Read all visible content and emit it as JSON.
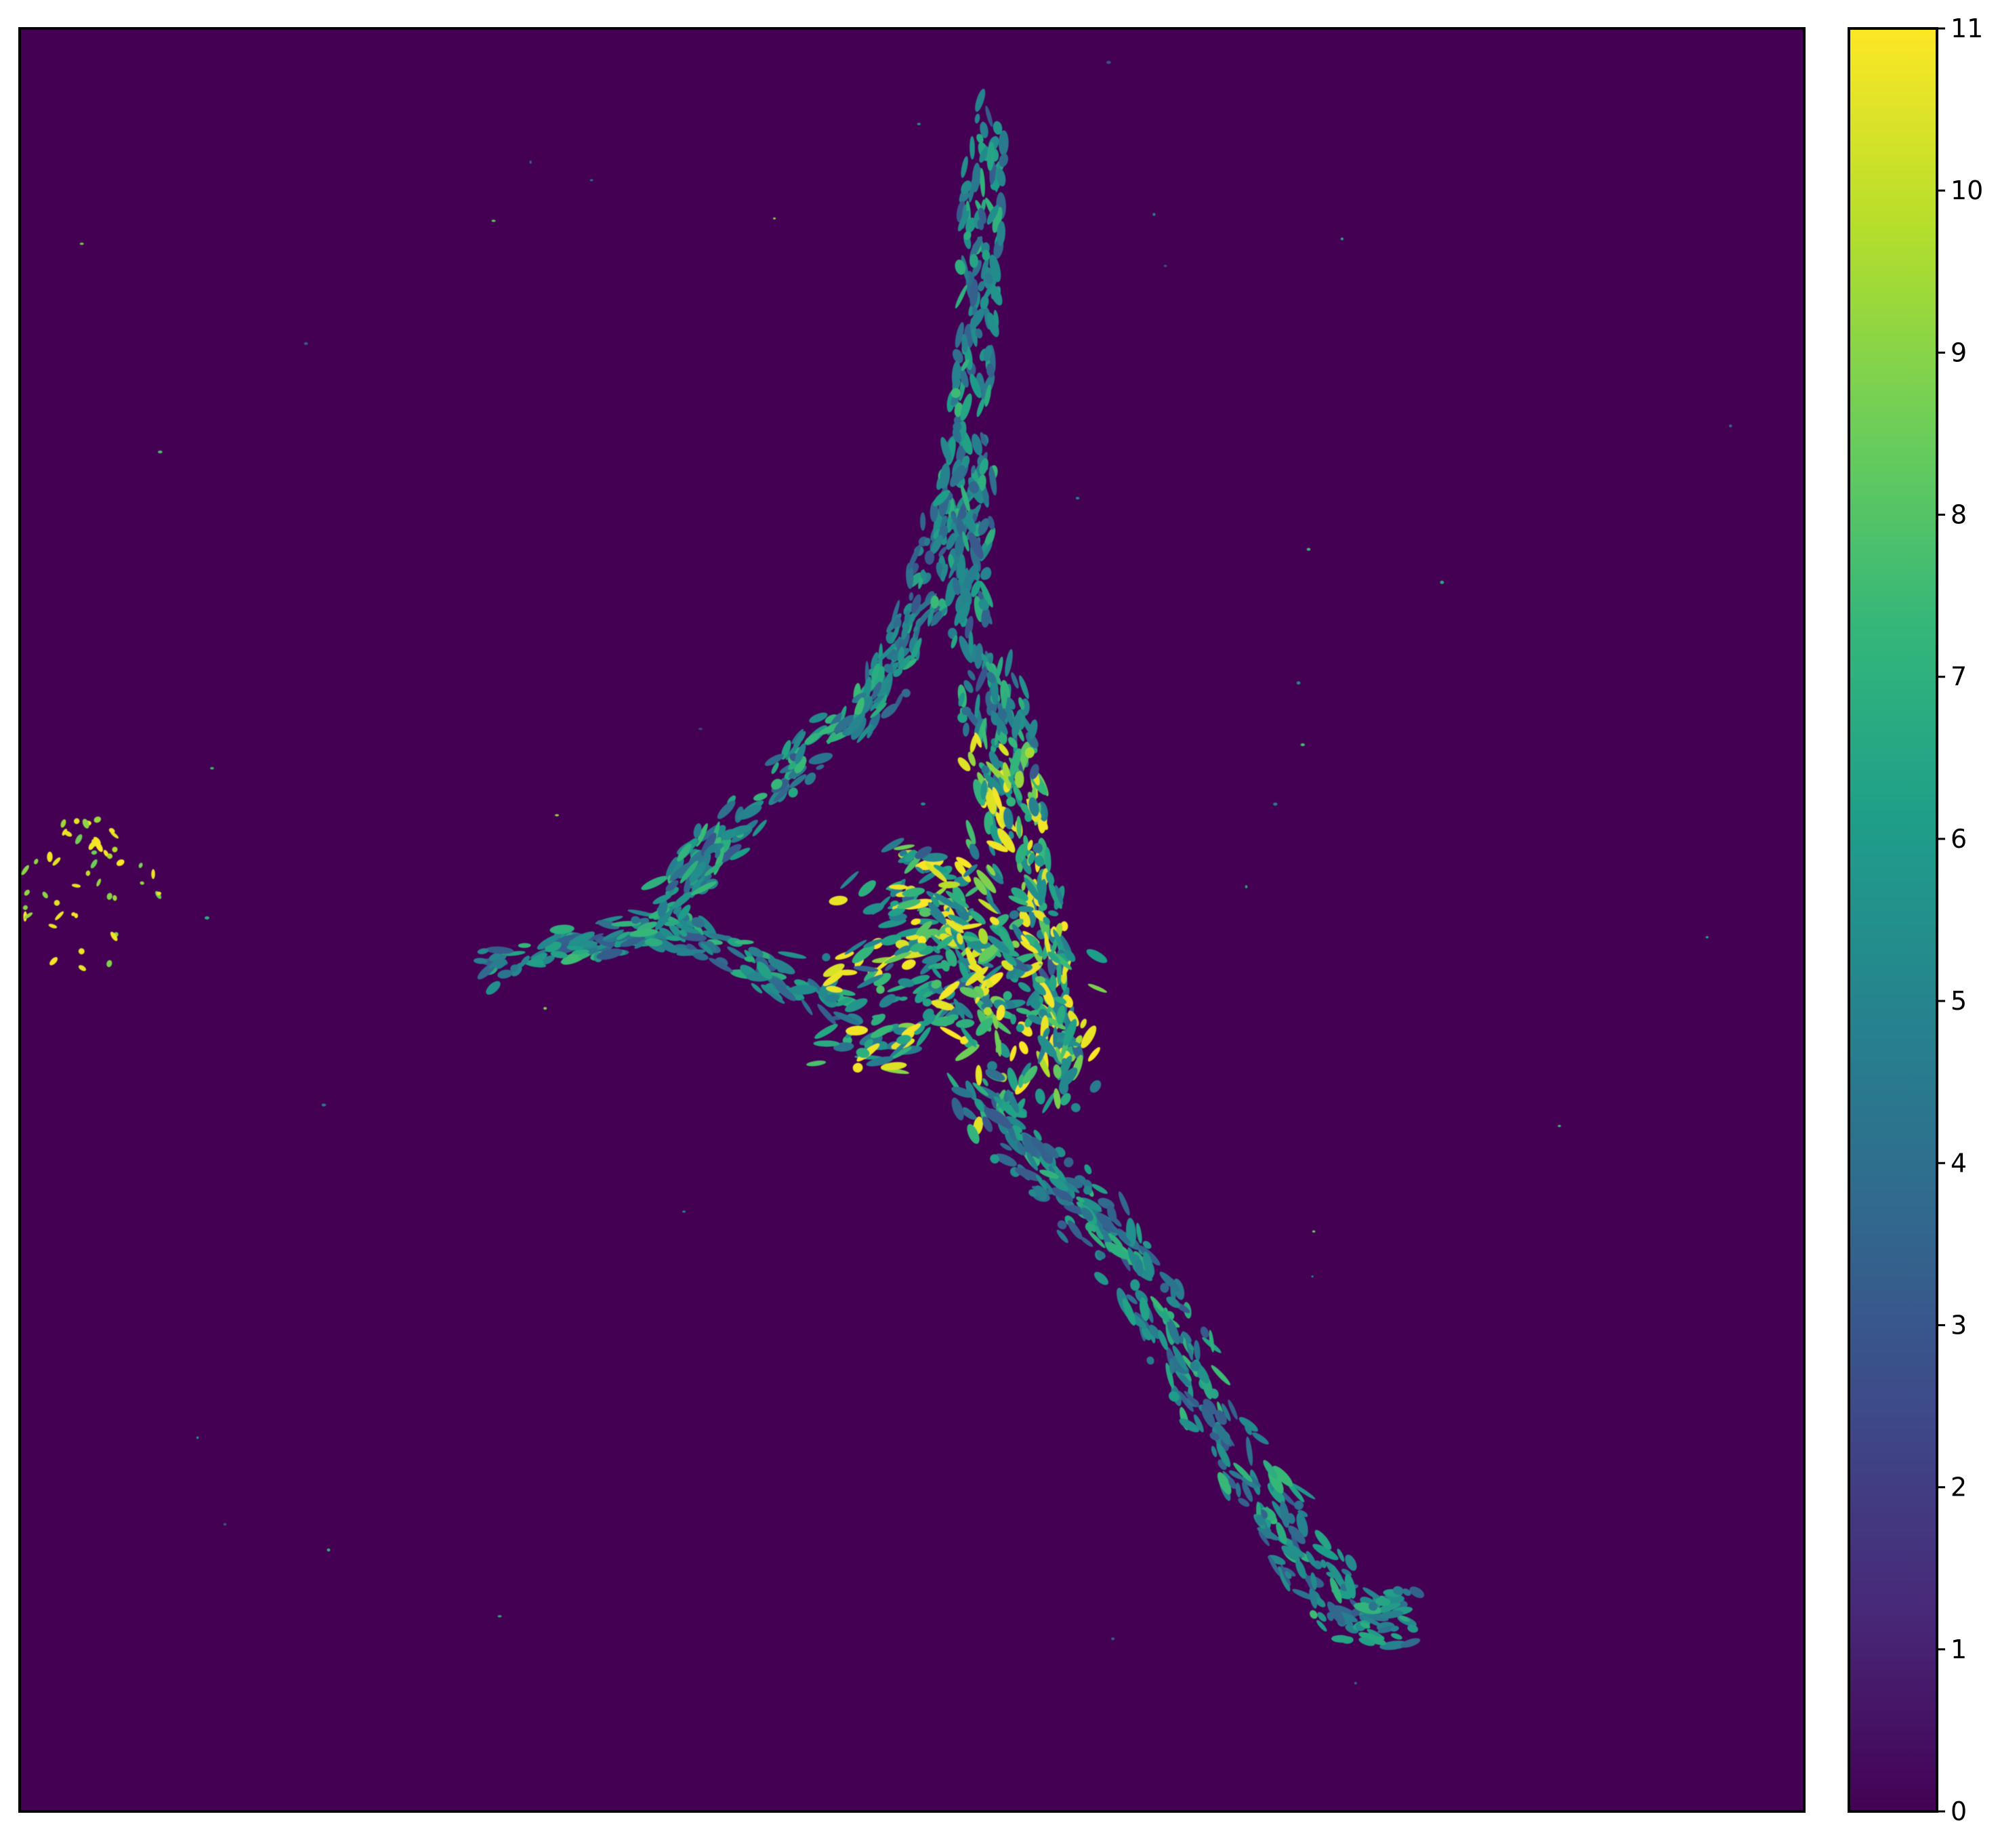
{
  "chart_data": {
    "type": "heatmap",
    "title": "",
    "xlabel": "",
    "ylabel": "",
    "axes_ticks_visible": false,
    "grid": false,
    "description_of_content": [],
    "colormap": "viridis",
    "colormap_stops": [
      "#440154",
      "#482878",
      "#3e4989",
      "#31688e",
      "#26828e",
      "#1f9e89",
      "#35b779",
      "#6ece58",
      "#b5de2b",
      "#fde725"
    ],
    "background_value": 0,
    "colorbar": {
      "placement": "right",
      "min": 0,
      "max": 11,
      "ticks": [
        {
          "value": 0,
          "label": "0"
        },
        {
          "value": 1,
          "label": "1"
        },
        {
          "value": 2,
          "label": "2"
        },
        {
          "value": 3,
          "label": "3"
        },
        {
          "value": 4,
          "label": "4"
        },
        {
          "value": 5,
          "label": "5"
        },
        {
          "value": 6,
          "label": "6"
        },
        {
          "value": 7,
          "label": "7"
        },
        {
          "value": 8,
          "label": "8"
        },
        {
          "value": 9,
          "label": "9"
        },
        {
          "value": 10,
          "label": "10"
        },
        {
          "value": 11,
          "label": "11"
        }
      ]
    }
  }
}
